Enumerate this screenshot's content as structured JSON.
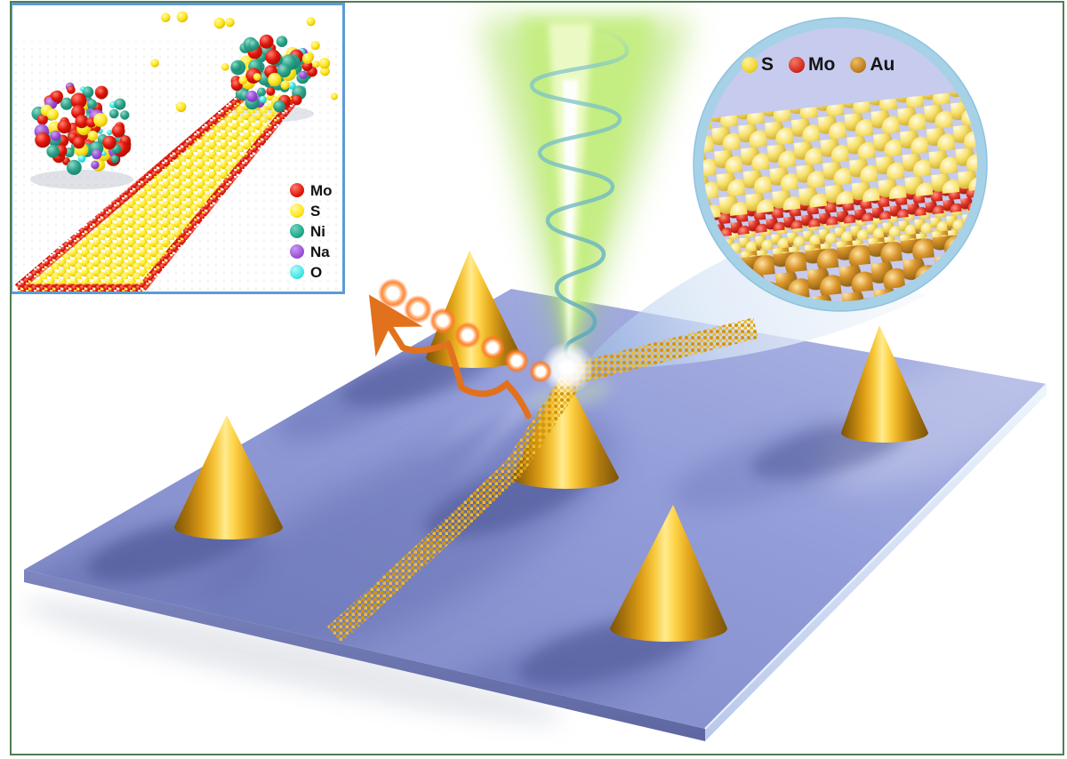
{
  "growth_inset": {
    "legend": [
      {
        "element": "Mo",
        "color": "#e01408"
      },
      {
        "element": "S",
        "color": "#ffe81e"
      },
      {
        "element": "Ni",
        "color": "#1fa78b"
      },
      {
        "element": "Na",
        "color": "#9a4fd8"
      },
      {
        "element": "O",
        "color": "#3ce6e6"
      }
    ]
  },
  "interface_inset": {
    "legend": [
      {
        "element": "S",
        "color": "#f2d733"
      },
      {
        "element": "Mo",
        "color": "#d32a1e"
      },
      {
        "element": "Au",
        "color": "#bf7f1c"
      }
    ]
  },
  "scene": {
    "cone_count": 5,
    "substrate_color": "#8e98d4",
    "cone_gold_color": "#eab02a",
    "laser_color": "#b8ec6a",
    "helix_color": "#7cc4cc",
    "photon_color": "#ff7a26",
    "nanoribbon_color": "#d79a10",
    "frame_color": "#4f7e55",
    "growth_inset_border_color": "#5b9bd5",
    "interface_inset_ring_color": "#a6d1e7"
  }
}
